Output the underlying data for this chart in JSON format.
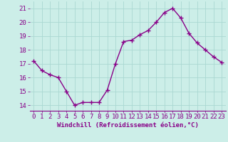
{
  "x": [
    0,
    1,
    2,
    3,
    4,
    5,
    6,
    7,
    8,
    9,
    10,
    11,
    12,
    13,
    14,
    15,
    16,
    17,
    18,
    19,
    20,
    21,
    22,
    23
  ],
  "y": [
    17.2,
    16.5,
    16.2,
    16.0,
    15.0,
    14.0,
    14.2,
    14.2,
    14.2,
    15.1,
    17.0,
    18.6,
    18.7,
    19.1,
    19.4,
    20.0,
    20.7,
    21.0,
    20.3,
    19.2,
    18.5,
    18.0,
    17.5,
    17.1
  ],
  "line_color": "#880088",
  "marker": "+",
  "marker_size": 4,
  "marker_linewidth": 1.0,
  "bg_color": "#cceee8",
  "grid_color": "#aad8d2",
  "xlabel": "Windchill (Refroidissement éolien,°C)",
  "ylabel_ticks": [
    14,
    15,
    16,
    17,
    18,
    19,
    20,
    21
  ],
  "xlim": [
    -0.5,
    23.5
  ],
  "ylim": [
    13.6,
    21.5
  ],
  "xticks": [
    0,
    1,
    2,
    3,
    4,
    5,
    6,
    7,
    8,
    9,
    10,
    11,
    12,
    13,
    14,
    15,
    16,
    17,
    18,
    19,
    20,
    21,
    22,
    23
  ],
  "xlabel_fontsize": 6.5,
  "tick_fontsize": 6.5,
  "line_width": 1.0
}
